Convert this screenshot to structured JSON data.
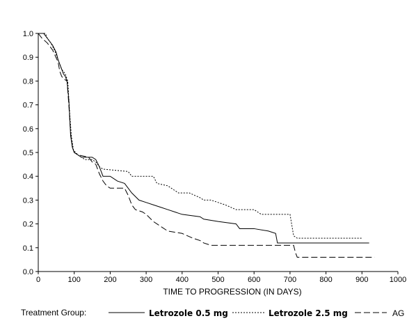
{
  "chart_data": {
    "type": "line",
    "title": "",
    "xlabel": "TIME TO PROGRESSION (IN DAYS)",
    "ylabel": "",
    "xlim": [
      0,
      1000
    ],
    "ylim": [
      0,
      1.0
    ],
    "x_ticks": [
      "0",
      "100",
      "200",
      "300",
      "400",
      "500",
      "600",
      "700",
      "800",
      "900",
      "1000"
    ],
    "y_ticks": [
      "0.0",
      "0.1",
      "0.2",
      "0.3",
      "0.4",
      "0.5",
      "0.6",
      "0.7",
      "0.8",
      "0.9",
      "1.0"
    ],
    "grid": false,
    "legend_title": "Treatment Group:",
    "legend_position": "bottom",
    "series": [
      {
        "name": "Letrozole 0.5 mg",
        "style": "solid",
        "color": "#000000",
        "points": [
          [
            0,
            1.0
          ],
          [
            15,
            1.0
          ],
          [
            20,
            0.99
          ],
          [
            30,
            0.97
          ],
          [
            40,
            0.95
          ],
          [
            50,
            0.92
          ],
          [
            55,
            0.89
          ],
          [
            60,
            0.87
          ],
          [
            65,
            0.85
          ],
          [
            70,
            0.83
          ],
          [
            75,
            0.82
          ],
          [
            80,
            0.8
          ],
          [
            85,
            0.72
          ],
          [
            88,
            0.63
          ],
          [
            90,
            0.57
          ],
          [
            95,
            0.52
          ],
          [
            100,
            0.5
          ],
          [
            110,
            0.49
          ],
          [
            120,
            0.48
          ],
          [
            150,
            0.48
          ],
          [
            160,
            0.47
          ],
          [
            170,
            0.44
          ],
          [
            180,
            0.4
          ],
          [
            200,
            0.4
          ],
          [
            220,
            0.38
          ],
          [
            240,
            0.37
          ],
          [
            250,
            0.35
          ],
          [
            260,
            0.33
          ],
          [
            280,
            0.3
          ],
          [
            300,
            0.29
          ],
          [
            320,
            0.28
          ],
          [
            340,
            0.27
          ],
          [
            360,
            0.26
          ],
          [
            380,
            0.25
          ],
          [
            400,
            0.24
          ],
          [
            450,
            0.23
          ],
          [
            460,
            0.22
          ],
          [
            500,
            0.21
          ],
          [
            550,
            0.2
          ],
          [
            560,
            0.18
          ],
          [
            600,
            0.18
          ],
          [
            640,
            0.17
          ],
          [
            660,
            0.16
          ],
          [
            665,
            0.12
          ],
          [
            700,
            0.12
          ],
          [
            920,
            0.12
          ]
        ]
      },
      {
        "name": "Letrozole 2.5 mg",
        "style": "dotted",
        "color": "#000000",
        "points": [
          [
            0,
            1.0
          ],
          [
            20,
            1.0
          ],
          [
            25,
            0.98
          ],
          [
            35,
            0.96
          ],
          [
            45,
            0.93
          ],
          [
            55,
            0.89
          ],
          [
            65,
            0.85
          ],
          [
            75,
            0.83
          ],
          [
            82,
            0.8
          ],
          [
            88,
            0.65
          ],
          [
            92,
            0.57
          ],
          [
            98,
            0.51
          ],
          [
            110,
            0.49
          ],
          [
            130,
            0.47
          ],
          [
            150,
            0.47
          ],
          [
            160,
            0.46
          ],
          [
            170,
            0.44
          ],
          [
            180,
            0.43
          ],
          [
            250,
            0.42
          ],
          [
            260,
            0.4
          ],
          [
            320,
            0.4
          ],
          [
            330,
            0.37
          ],
          [
            360,
            0.36
          ],
          [
            390,
            0.33
          ],
          [
            420,
            0.33
          ],
          [
            450,
            0.31
          ],
          [
            460,
            0.3
          ],
          [
            480,
            0.3
          ],
          [
            500,
            0.29
          ],
          [
            520,
            0.28
          ],
          [
            550,
            0.26
          ],
          [
            600,
            0.26
          ],
          [
            620,
            0.24
          ],
          [
            700,
            0.24
          ],
          [
            710,
            0.15
          ],
          [
            720,
            0.14
          ],
          [
            900,
            0.14
          ]
        ]
      },
      {
        "name": "AG",
        "style": "dashed",
        "color": "#000000",
        "points": [
          [
            0,
            1.0
          ],
          [
            10,
            0.98
          ],
          [
            25,
            0.96
          ],
          [
            40,
            0.93
          ],
          [
            55,
            0.88
          ],
          [
            60,
            0.84
          ],
          [
            65,
            0.82
          ],
          [
            70,
            0.81
          ],
          [
            80,
            0.8
          ],
          [
            85,
            0.7
          ],
          [
            90,
            0.58
          ],
          [
            95,
            0.52
          ],
          [
            100,
            0.5
          ],
          [
            110,
            0.49
          ],
          [
            140,
            0.48
          ],
          [
            150,
            0.46
          ],
          [
            160,
            0.45
          ],
          [
            170,
            0.41
          ],
          [
            180,
            0.38
          ],
          [
            190,
            0.36
          ],
          [
            200,
            0.35
          ],
          [
            240,
            0.35
          ],
          [
            250,
            0.32
          ],
          [
            260,
            0.28
          ],
          [
            270,
            0.26
          ],
          [
            290,
            0.25
          ],
          [
            300,
            0.24
          ],
          [
            320,
            0.21
          ],
          [
            340,
            0.19
          ],
          [
            360,
            0.17
          ],
          [
            400,
            0.16
          ],
          [
            430,
            0.14
          ],
          [
            450,
            0.13
          ],
          [
            460,
            0.12
          ],
          [
            480,
            0.11
          ],
          [
            650,
            0.11
          ],
          [
            710,
            0.11
          ],
          [
            715,
            0.08
          ],
          [
            720,
            0.06
          ],
          [
            935,
            0.06
          ]
        ]
      }
    ]
  }
}
